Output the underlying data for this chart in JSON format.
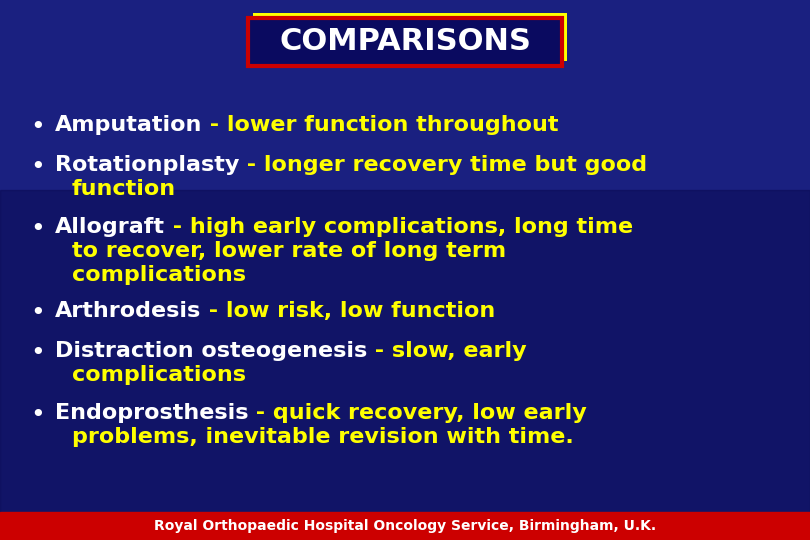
{
  "bg_color": "#1a2080",
  "title": "COMPARISONS",
  "title_color": "#ffffff",
  "title_box_edge_color": "#cc0000",
  "title_box_fill": "#0a0a60",
  "title_shadow_color": "#ffff00",
  "yellow_color": "#ffff00",
  "white_color": "#ffffff",
  "footer_text": "Royal Orthopaedic Hospital Oncology Service, Birmingham, U.K.",
  "footer_color": "#ffffff",
  "footer_bar_color": "#cc0000",
  "bullet_items": [
    {
      "white_part": "Amputation",
      "yellow_part": " - lower function throughout",
      "continuation": []
    },
    {
      "white_part": "Rotationplasty",
      "yellow_part": " - longer recovery time but good",
      "continuation": [
        "function"
      ]
    },
    {
      "white_part": "Allograft",
      "yellow_part": " - high early complications, long time",
      "continuation": [
        "to recover, lower rate of long term",
        "complications"
      ]
    },
    {
      "white_part": "Arthrodesis",
      "yellow_part": " - low risk, low function",
      "continuation": []
    },
    {
      "white_part": "Distraction osteogenesis",
      "yellow_part": " - slow, early",
      "continuation": [
        "complications"
      ]
    },
    {
      "white_part": "Endoprosthesis",
      "yellow_part": " - quick recovery, low early",
      "continuation": [
        "problems, inevitable revision with time."
      ]
    }
  ],
  "title_fontsize": 22,
  "body_fontsize": 16,
  "footer_fontsize": 10
}
